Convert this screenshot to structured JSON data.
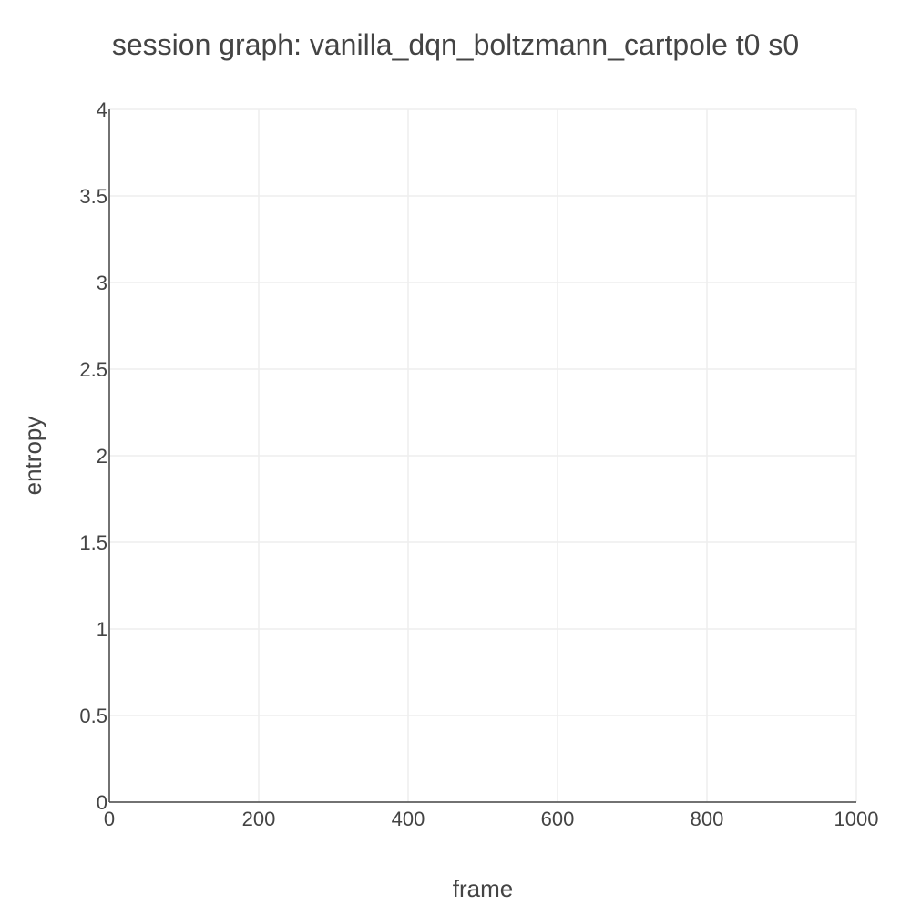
{
  "chart_data": {
    "type": "line",
    "title": "session graph: vanilla_dqn_boltzmann_cartpole t0 s0",
    "xlabel": "frame",
    "ylabel": "entropy",
    "xlim": [
      0,
      1000
    ],
    "ylim": [
      0,
      4
    ],
    "x_ticks": [
      0,
      200,
      400,
      600,
      800,
      1000
    ],
    "y_ticks": [
      0,
      0.5,
      1,
      1.5,
      2,
      2.5,
      3,
      3.5,
      4
    ],
    "x_tick_labels": [
      "0",
      "200",
      "400",
      "600",
      "800",
      "1000"
    ],
    "y_tick_labels": [
      "0",
      "0.5",
      "1",
      "1.5",
      "2",
      "2.5",
      "3",
      "3.5",
      "4"
    ],
    "grid": true,
    "series": [],
    "colors": {
      "text": "#444444",
      "grid": "#eeeeee",
      "axis": "#444444",
      "background": "#ffffff"
    }
  }
}
